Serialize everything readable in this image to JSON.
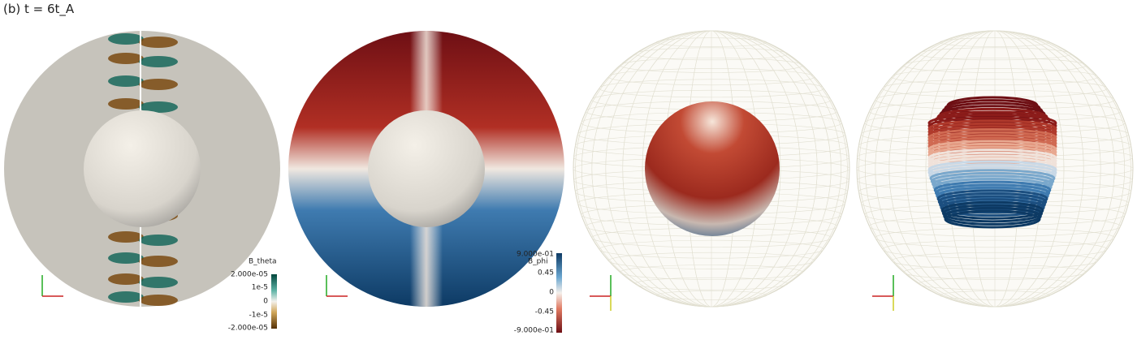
{
  "header": {
    "title": "(b) t = 6t_A"
  },
  "colorbars": [
    {
      "label": "B_theta",
      "ticks": [
        "2.000e-05",
        "1e-5",
        "0",
        "-1e-5",
        "-2.000e-05"
      ]
    },
    {
      "label": "B_phi",
      "ticks": [
        "9.000e-01",
        "0.45",
        "0",
        "-0.45",
        "-9.000e-01"
      ]
    }
  ]
}
